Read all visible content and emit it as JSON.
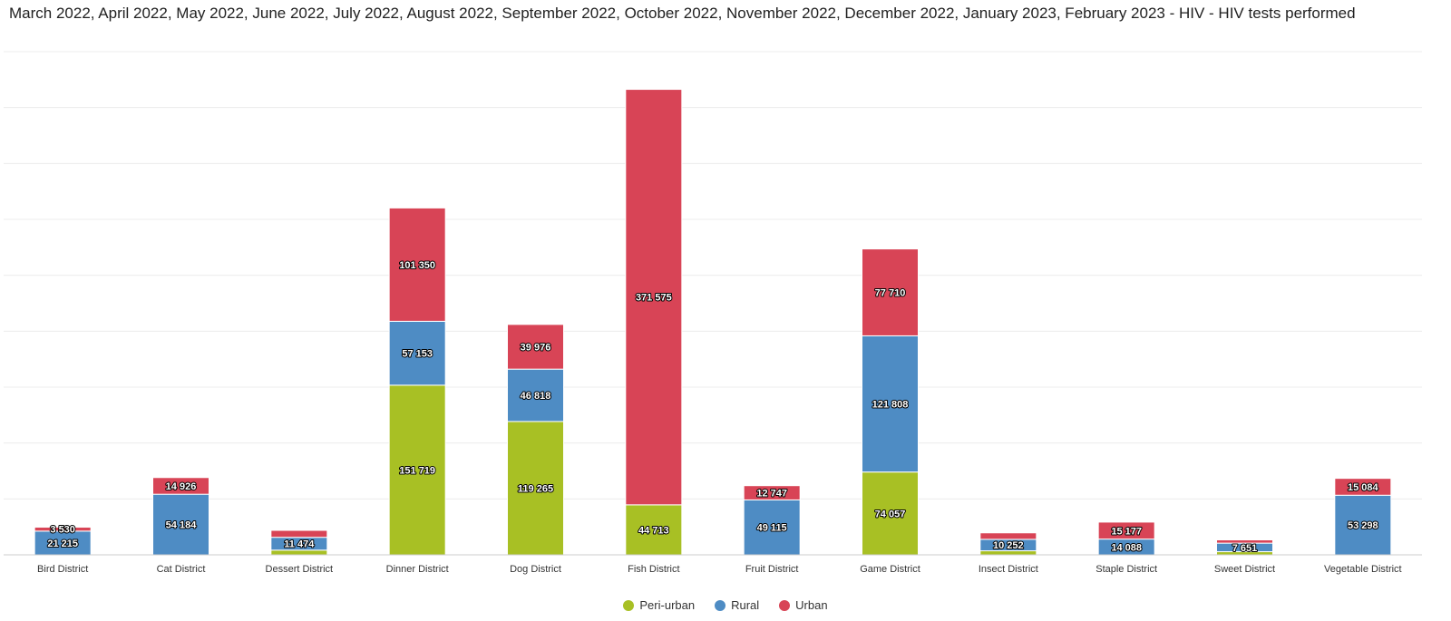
{
  "title": "March 2022, April 2022, May 2022, June 2022, July 2022, August 2022, September 2022, October 2022, November 2022, December 2022, January 2023, February 2023 - HIV - HIV tests performed",
  "chart_data": {
    "type": "bar",
    "stacked": true,
    "title": "March 2022, April 2022, May 2022, June 2022, July 2022, August 2022, September 2022, October 2022, November 2022, December 2022, January 2023, February 2023 - HIV - HIV tests performed",
    "categories": [
      "Bird District",
      "Cat District",
      "Dessert District",
      "Dinner District",
      "Dog District",
      "Fish District",
      "Fruit District",
      "Game District",
      "Insect District",
      "Staple District",
      "Sweet District",
      "Vegetable District"
    ],
    "series": [
      {
        "name": "Peri-urban",
        "color": "#a8c024",
        "values": [
          0,
          0,
          4200,
          151719,
          119265,
          44713,
          0,
          74057,
          3600,
          0,
          2800,
          0
        ]
      },
      {
        "name": "Rural",
        "color": "#4e8cc4",
        "values": [
          21215,
          54184,
          11474,
          57153,
          46818,
          0,
          49115,
          121808,
          10252,
          14088,
          7651,
          53298
        ]
      },
      {
        "name": "Urban",
        "color": "#d84456",
        "values": [
          3530,
          14926,
          6200,
          101350,
          39976,
          371575,
          12747,
          77710,
          5800,
          15177,
          2900,
          15084
        ]
      }
    ],
    "data_labels": [
      [
        "",
        "",
        "",
        "151 719",
        "119 265",
        "44 713",
        "",
        "74 057",
        "",
        "",
        "",
        ""
      ],
      [
        "21 215",
        "54 184",
        "11 474",
        "57 153",
        "46 818",
        "",
        "49 115",
        "121 808",
        "10 252",
        "14 088",
        "7 651",
        "53 298"
      ],
      [
        "3 530",
        "14 926",
        "",
        "101 350",
        "39 976",
        "371 575",
        "12 747",
        "77 710",
        "",
        "15 177",
        "",
        "15 084"
      ]
    ],
    "ylim": [
      0,
      450000
    ],
    "y_gridline_step": 50000,
    "y_tick_labels_shown": false,
    "grid": true,
    "legend_position": "bottom-center"
  }
}
